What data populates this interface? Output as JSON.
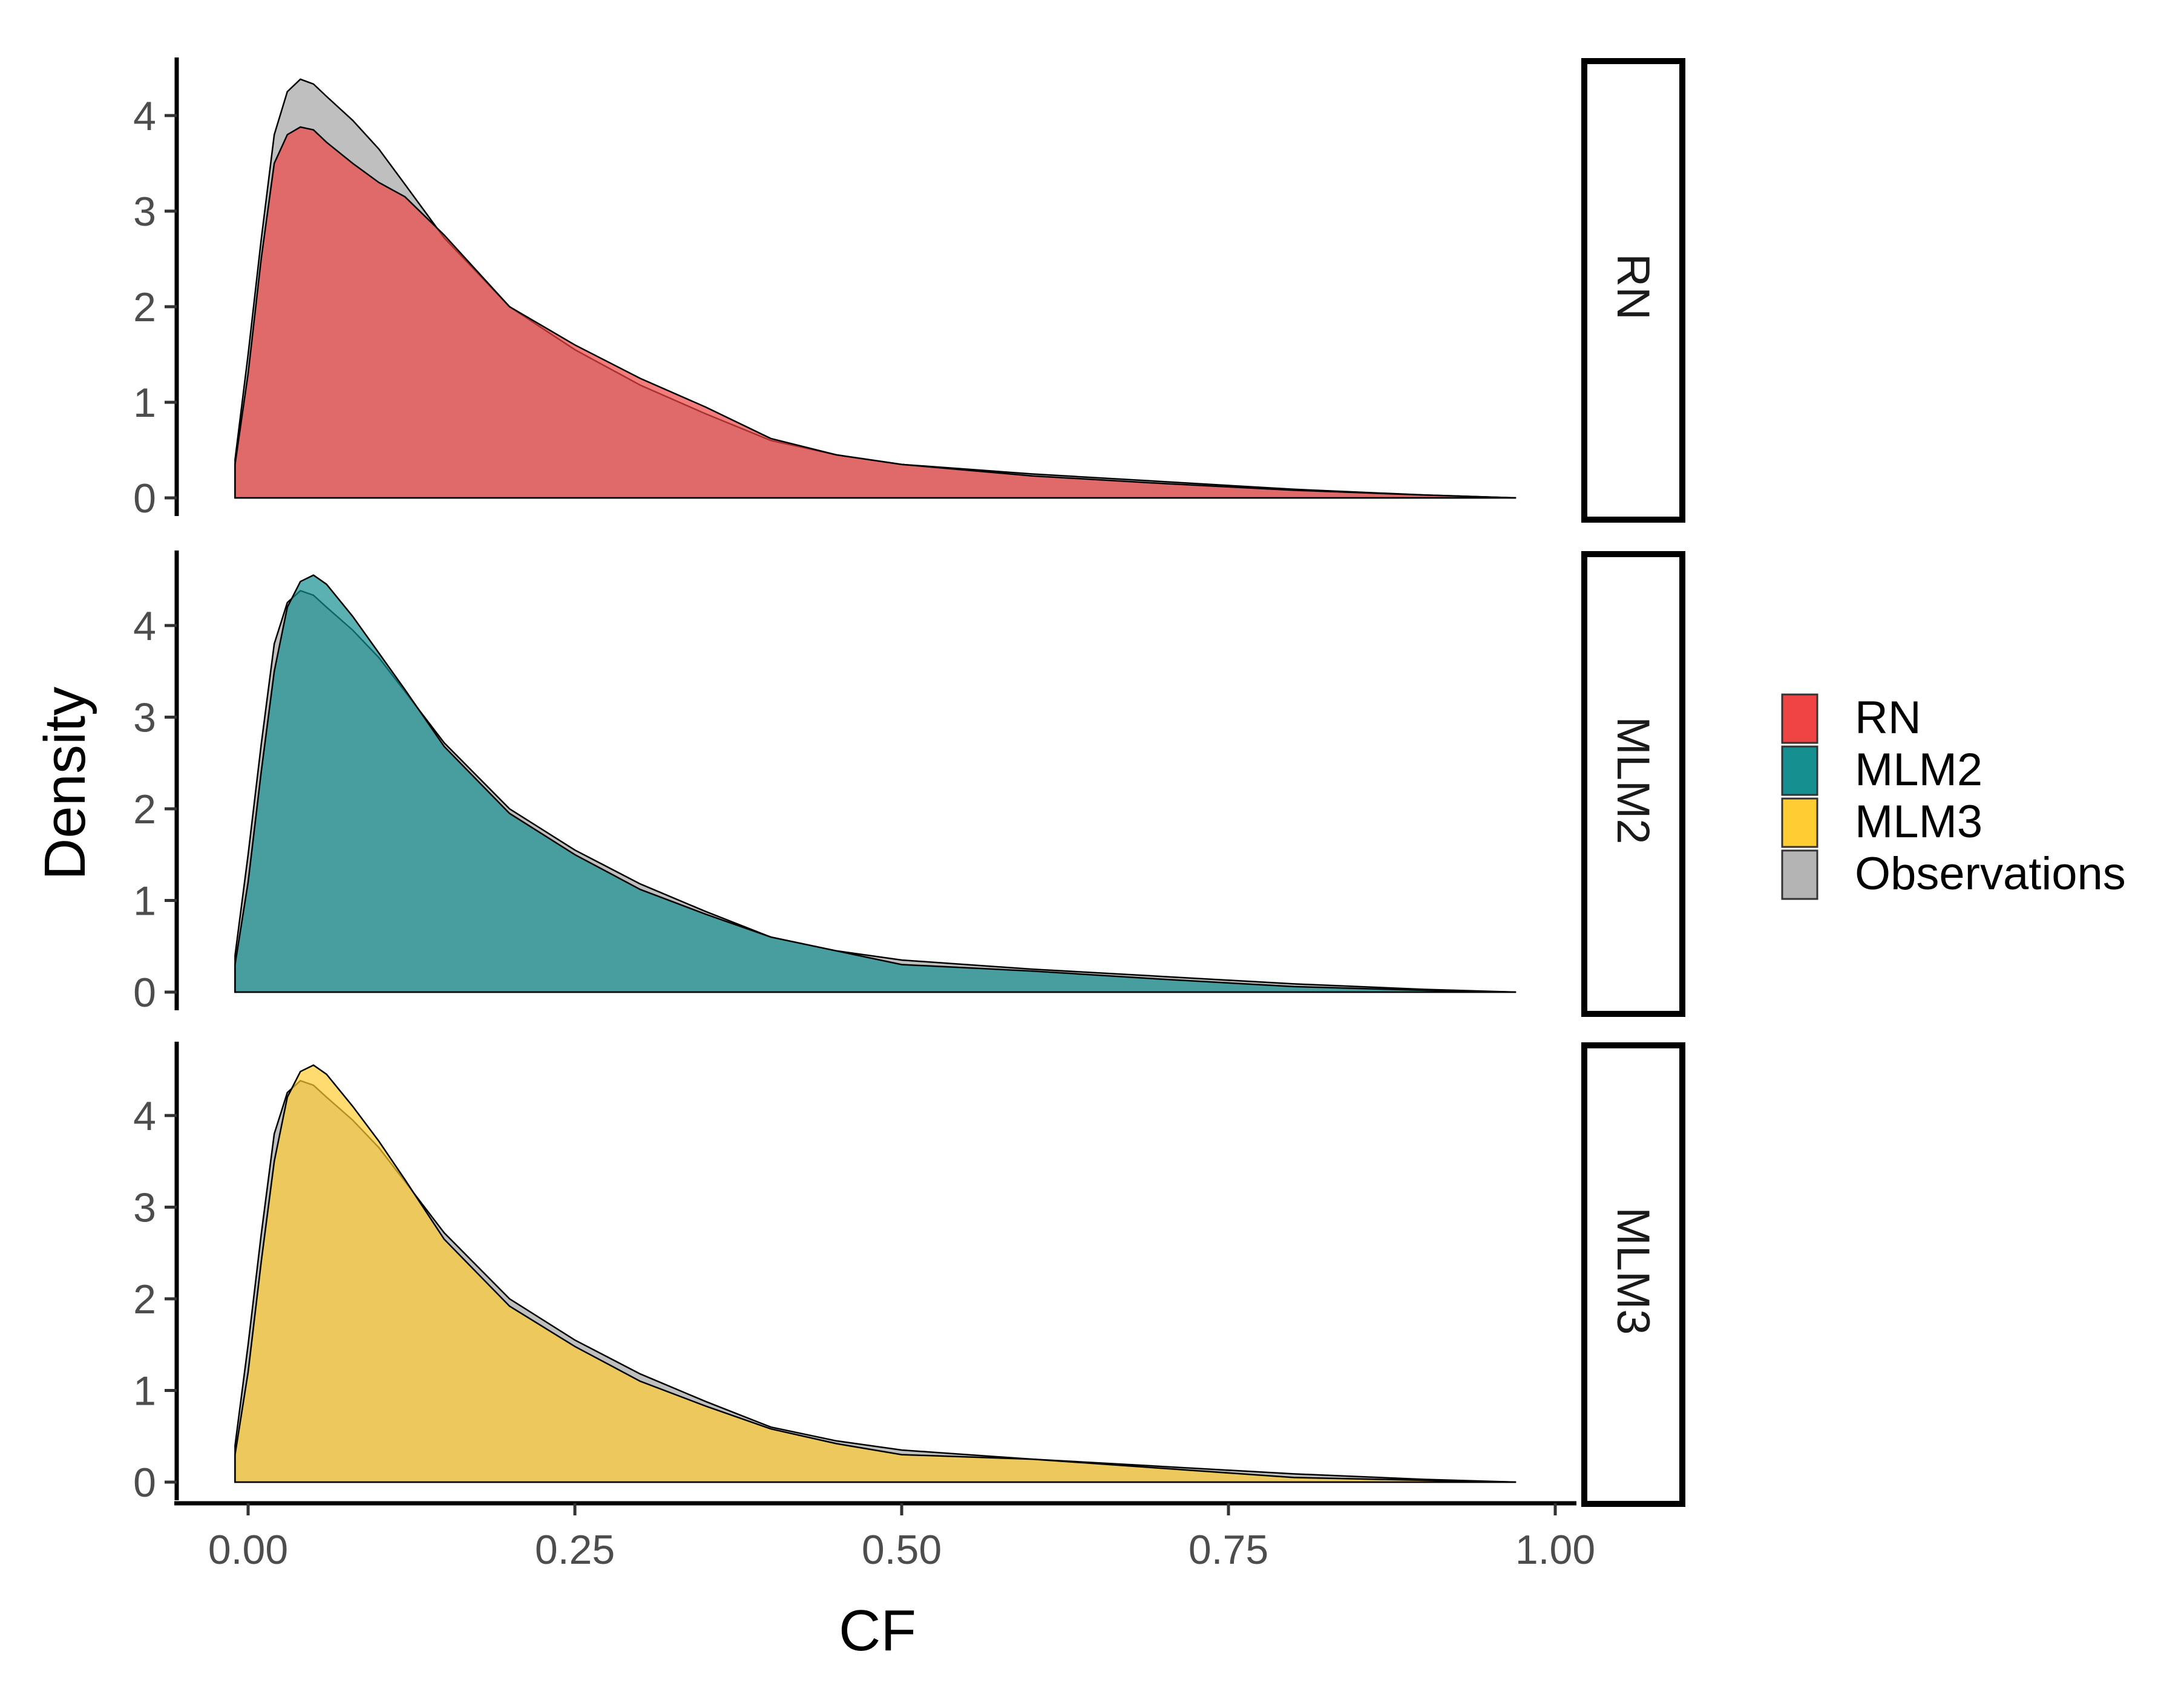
{
  "chart_data": {
    "type": "area",
    "subtype": "faceted-density",
    "xlabel": "CF",
    "ylabel": "Density",
    "xlim": [
      -0.02,
      1.0
    ],
    "x_ticks": [
      0,
      0.25,
      0.5,
      0.75,
      1
    ],
    "x_tick_labels": [
      "0.00",
      "0.25",
      "0.50",
      "0.75",
      "1.00"
    ],
    "ylim": [
      0,
      4.75
    ],
    "y_ticks": [
      0,
      1,
      2,
      3,
      4
    ],
    "y_tick_labels": [
      "0",
      "1",
      "2",
      "3",
      "4"
    ],
    "grid": false,
    "legend_position": "right",
    "legend": [
      {
        "label": "RN",
        "color": "#ee4444"
      },
      {
        "label": "MLM2",
        "color": "#168f91"
      },
      {
        "label": "MLM3",
        "color": "#ffcc33"
      },
      {
        "label": "Observations",
        "color": "#b4b4b4"
      }
    ],
    "observations": {
      "x": [
        -0.01,
        0.0,
        0.01,
        0.02,
        0.03,
        0.04,
        0.05,
        0.06,
        0.08,
        0.1,
        0.12,
        0.15,
        0.2,
        0.25,
        0.3,
        0.35,
        0.4,
        0.45,
        0.5,
        0.6,
        0.7,
        0.8,
        0.9,
        0.97
      ],
      "y": [
        0.4,
        1.5,
        2.7,
        3.8,
        4.25,
        4.38,
        4.33,
        4.2,
        3.95,
        3.65,
        3.28,
        2.72,
        2.0,
        1.55,
        1.18,
        0.88,
        0.6,
        0.45,
        0.35,
        0.25,
        0.17,
        0.09,
        0.03,
        0.0
      ]
    },
    "facets": [
      {
        "label": "RN",
        "series": "RN",
        "color": "#ee4444",
        "x": [
          -0.01,
          0.0,
          0.01,
          0.02,
          0.03,
          0.04,
          0.05,
          0.06,
          0.08,
          0.1,
          0.12,
          0.15,
          0.2,
          0.25,
          0.3,
          0.35,
          0.4,
          0.45,
          0.5,
          0.6,
          0.7,
          0.8,
          0.9,
          0.97
        ],
        "y": [
          0.35,
          1.3,
          2.5,
          3.5,
          3.8,
          3.88,
          3.85,
          3.72,
          3.5,
          3.3,
          3.15,
          2.75,
          2.0,
          1.6,
          1.25,
          0.95,
          0.62,
          0.45,
          0.35,
          0.23,
          0.15,
          0.08,
          0.03,
          0.0
        ]
      },
      {
        "label": "MLM2",
        "series": "MLM2",
        "color": "#168f91",
        "x": [
          -0.01,
          0.0,
          0.01,
          0.02,
          0.03,
          0.04,
          0.05,
          0.06,
          0.08,
          0.1,
          0.12,
          0.15,
          0.2,
          0.25,
          0.3,
          0.35,
          0.4,
          0.45,
          0.5,
          0.6,
          0.7,
          0.8,
          0.9,
          0.97
        ],
        "y": [
          0.3,
          1.2,
          2.4,
          3.5,
          4.2,
          4.48,
          4.55,
          4.45,
          4.1,
          3.7,
          3.3,
          2.68,
          1.95,
          1.5,
          1.12,
          0.85,
          0.6,
          0.45,
          0.3,
          0.23,
          0.14,
          0.06,
          0.02,
          0.0
        ]
      },
      {
        "label": "MLM3",
        "series": "MLM3",
        "color": "#ffcc33",
        "x": [
          -0.01,
          0.0,
          0.01,
          0.02,
          0.03,
          0.04,
          0.05,
          0.06,
          0.08,
          0.1,
          0.12,
          0.15,
          0.2,
          0.25,
          0.3,
          0.35,
          0.4,
          0.45,
          0.5,
          0.6,
          0.7,
          0.8,
          0.9,
          0.97
        ],
        "y": [
          0.3,
          1.2,
          2.4,
          3.5,
          4.2,
          4.48,
          4.55,
          4.45,
          4.1,
          3.72,
          3.3,
          2.65,
          1.92,
          1.48,
          1.1,
          0.83,
          0.58,
          0.42,
          0.3,
          0.25,
          0.15,
          0.05,
          0.02,
          0.0
        ]
      }
    ]
  }
}
